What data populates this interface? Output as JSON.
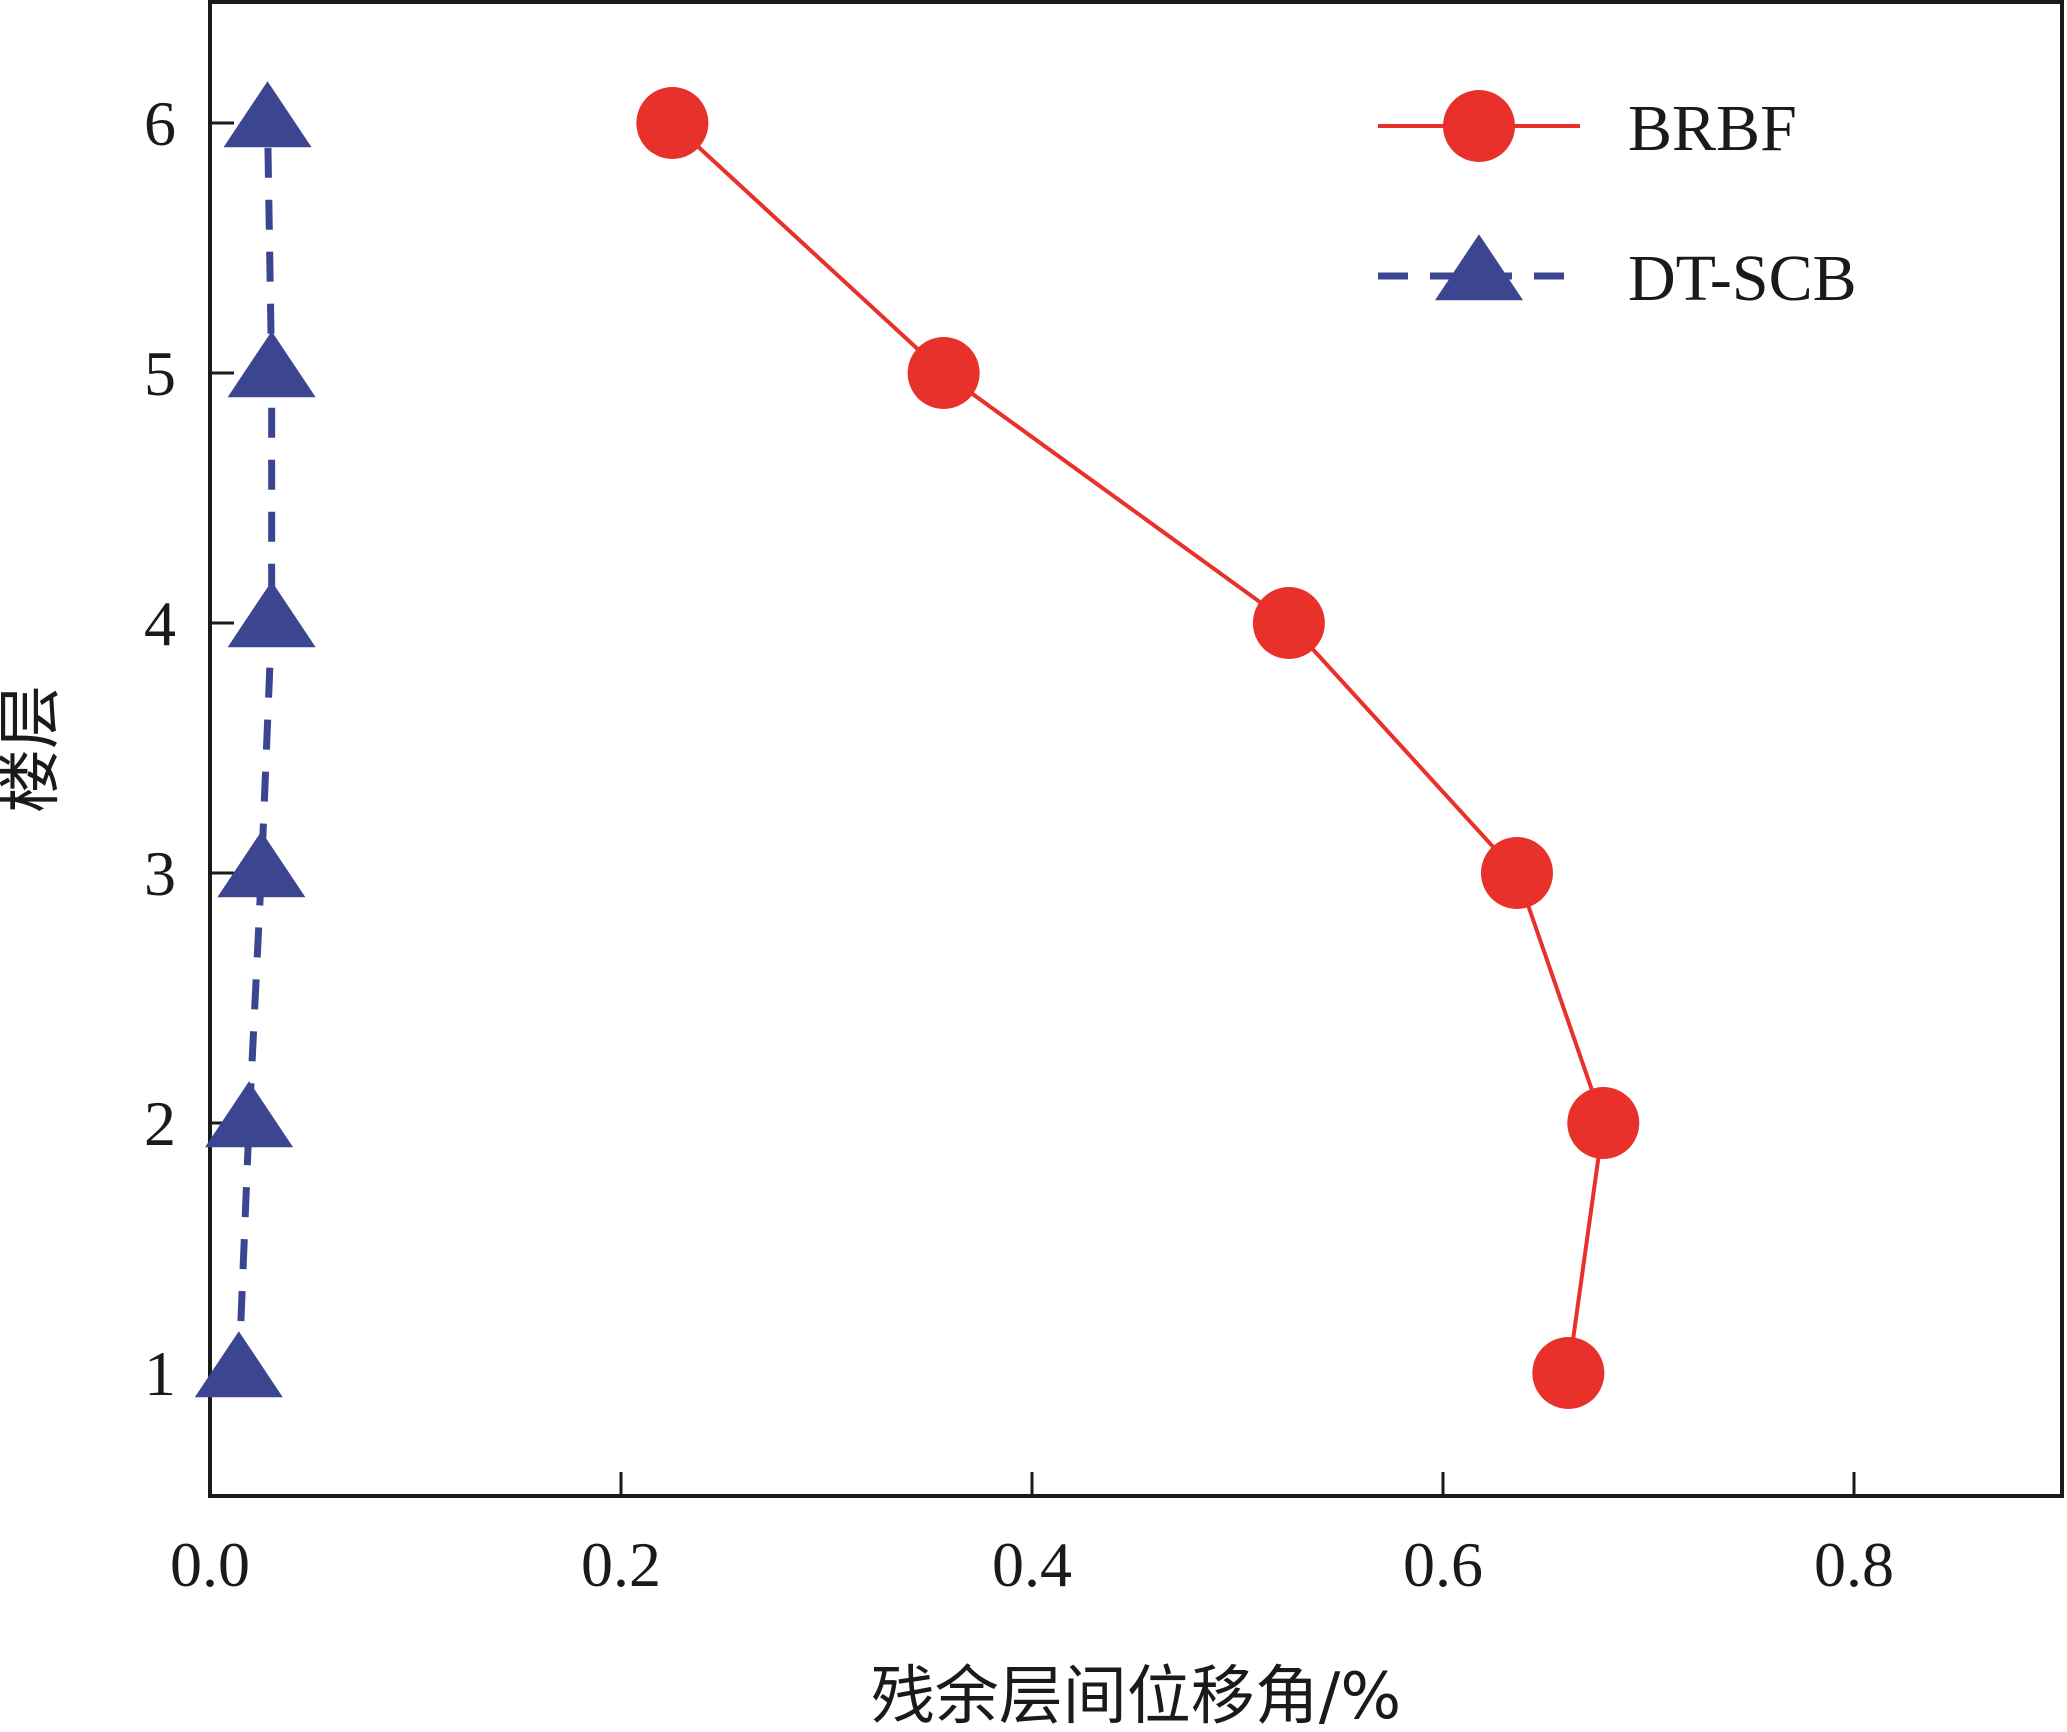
{
  "chart_data": {
    "type": "line",
    "xlabel": "残余层间位移角/%",
    "ylabel": "楼层",
    "xlim": [
      0.0,
      0.9
    ],
    "ylim": [
      0.5,
      6.5
    ],
    "xticks": [
      0.0,
      0.2,
      0.4,
      0.6,
      0.8
    ],
    "xtick_labels": [
      "0.0",
      "0.2",
      "0.4",
      "0.6",
      "0.8"
    ],
    "yticks": [
      1,
      2,
      3,
      4,
      5,
      6
    ],
    "ytick_labels": [
      "1",
      "2",
      "3",
      "4",
      "5",
      "6"
    ],
    "grid": false,
    "legend_position": "top-right",
    "series": [
      {
        "name": "BRBF",
        "color": "#e8312a",
        "line_style": "solid",
        "marker": "circle",
        "points": [
          {
            "x": 0.661,
            "y": 1
          },
          {
            "x": 0.678,
            "y": 2
          },
          {
            "x": 0.636,
            "y": 3
          },
          {
            "x": 0.525,
            "y": 4
          },
          {
            "x": 0.357,
            "y": 5
          },
          {
            "x": 0.225,
            "y": 6
          }
        ]
      },
      {
        "name": "DT-SCB",
        "color": "#3b4590",
        "line_style": "dashed",
        "marker": "triangle",
        "points": [
          {
            "x": 0.014,
            "y": 1
          },
          {
            "x": 0.019,
            "y": 2
          },
          {
            "x": 0.025,
            "y": 3
          },
          {
            "x": 0.03,
            "y": 4
          },
          {
            "x": 0.03,
            "y": 5
          },
          {
            "x": 0.028,
            "y": 6
          }
        ]
      }
    ]
  }
}
